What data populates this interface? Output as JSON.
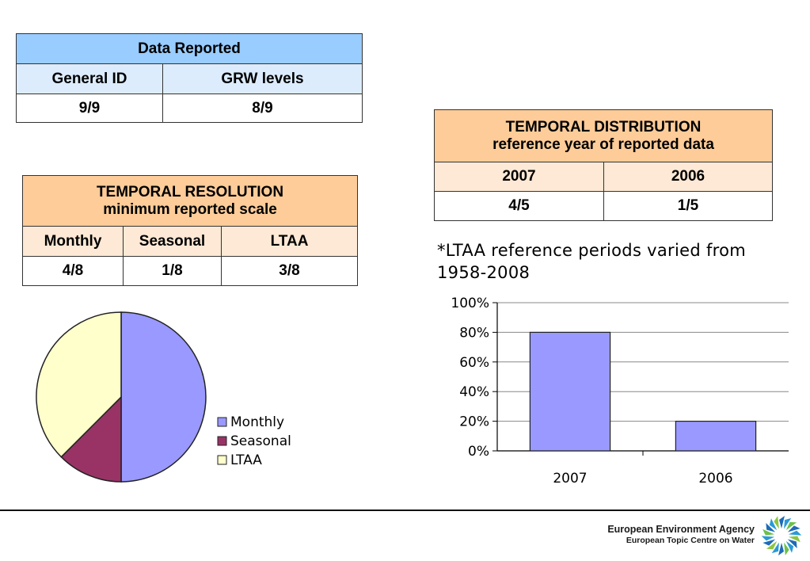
{
  "data_reported": {
    "title": "Data Reported",
    "headers": [
      "General ID",
      "GRW levels"
    ],
    "values": [
      "9/9",
      "8/9"
    ]
  },
  "temporal_resolution": {
    "title_line1": "TEMPORAL RESOLUTION",
    "title_line2": "minimum reported scale",
    "headers": [
      "Monthly",
      "Seasonal",
      "LTAA"
    ],
    "values": [
      "4/8",
      "1/8",
      "3/8"
    ]
  },
  "temporal_distribution": {
    "title_line1": "TEMPORAL DISTRIBUTION",
    "title_line2": "reference year of reported data",
    "headers": [
      "2007",
      "2006"
    ],
    "values": [
      "4/5",
      "1/5"
    ]
  },
  "note": "*LTAA reference periods varied from 1958-2008",
  "chart_data": [
    {
      "type": "pie",
      "categories": [
        "Monthly",
        "Seasonal",
        "LTAA"
      ],
      "values": [
        4,
        1,
        3
      ],
      "colors": [
        "#9999ff",
        "#993366",
        "#ffffcc"
      ],
      "legend": "right"
    },
    {
      "type": "bar",
      "categories": [
        "2007",
        "2006"
      ],
      "values": [
        80,
        20
      ],
      "ylim": [
        0,
        100
      ],
      "yticks": [
        "0%",
        "20%",
        "40%",
        "60%",
        "80%",
        "100%"
      ],
      "grid": true,
      "color": "#9999ff"
    }
  ],
  "footer": {
    "org_line1": "European Environment Agency",
    "org_line2": "European Topic Centre on Water",
    "logo_icon": "eea-logo-icon"
  }
}
